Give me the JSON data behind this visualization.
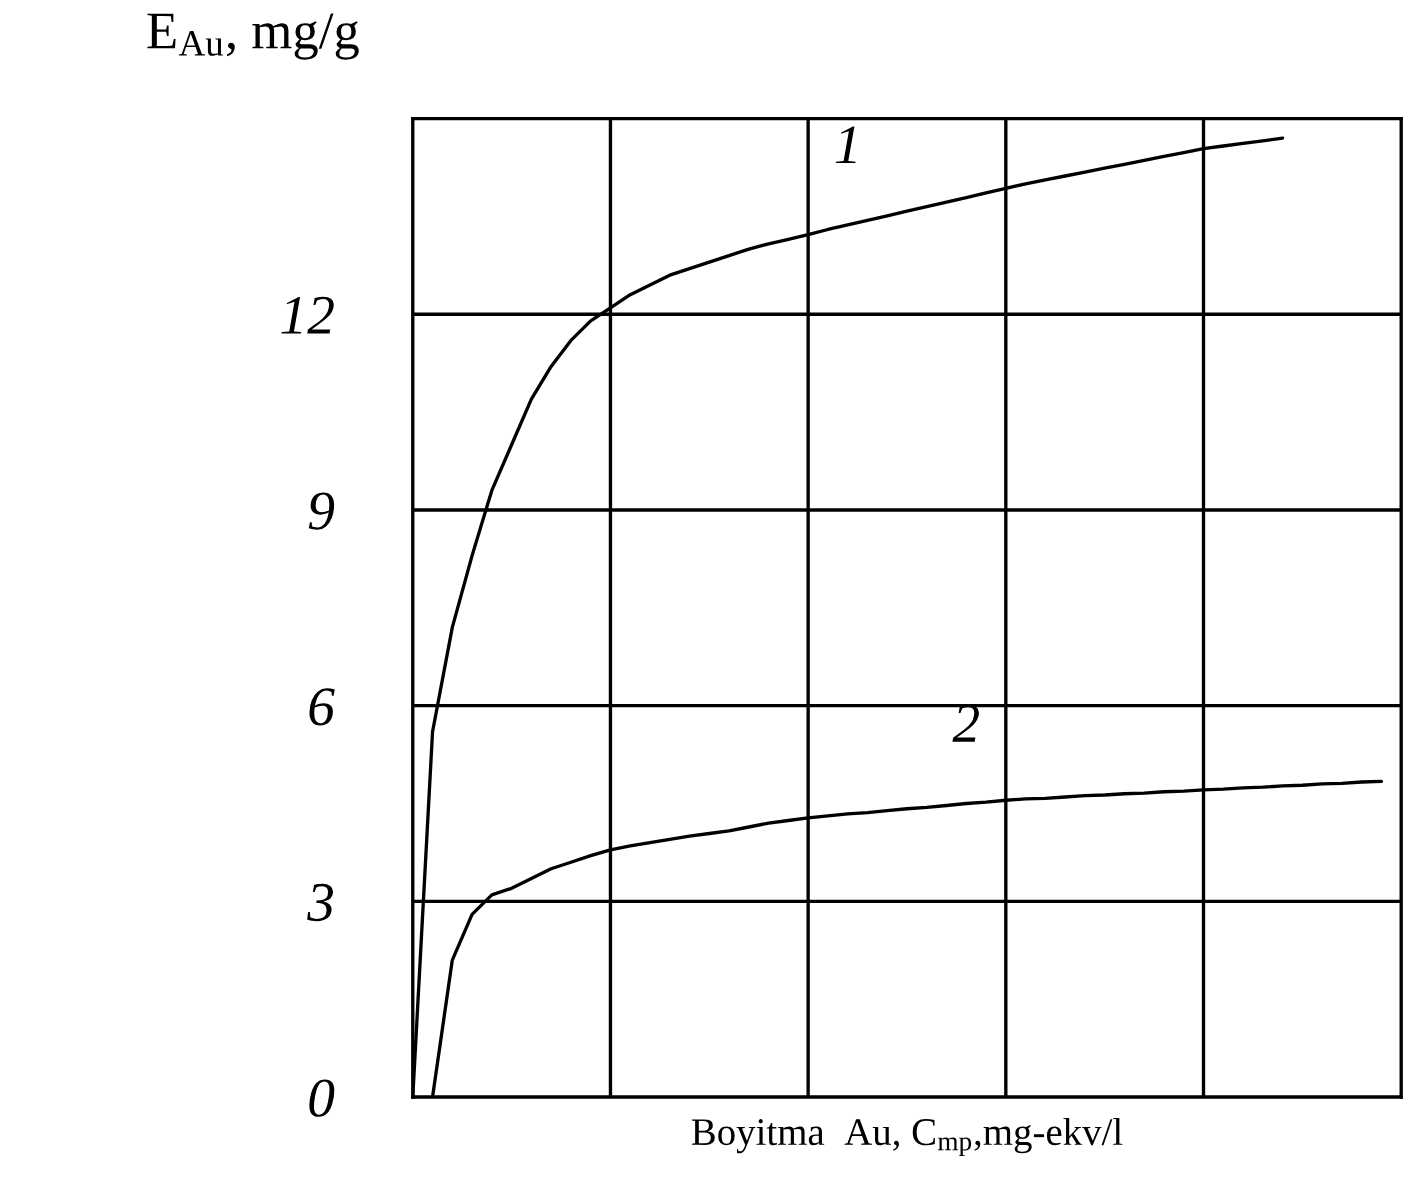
{
  "chart_data": {
    "type": "line",
    "xlabel": "Boyitma  Au, C$_{mp}$,mg-ekv/l",
    "ylabel": "E$_{Au}$, mg/g",
    "categories": [
      null,
      null,
      null,
      null,
      null,
      null,
      null,
      null,
      null,
      null,
      null,
      null,
      null,
      null,
      null,
      null,
      null,
      null,
      null,
      null,
      null,
      null,
      null,
      null,
      null,
      null,
      null,
      null,
      null,
      null,
      null,
      null,
      null,
      null,
      null,
      null,
      null,
      null,
      null,
      null,
      null,
      null,
      null,
      null,
      null,
      null,
      null,
      null,
      null,
      null,
      null
    ],
    "ylim": [
      0,
      15
    ],
    "yticks": [
      0,
      3,
      6,
      9,
      12
    ],
    "grid": true,
    "marker": "none",
    "line_style": "solid",
    "series": [
      {
        "name": "1",
        "color": "#000000",
        "values": [
          0,
          5.6,
          7.2,
          8.3,
          9.3,
          10.0,
          10.7,
          11.2,
          11.6,
          11.9,
          12.1,
          12.3,
          12.45,
          12.6,
          12.7,
          12.8,
          12.9,
          13.0,
          13.08,
          13.15,
          13.22,
          13.3,
          13.37,
          13.44,
          13.51,
          13.58,
          13.65,
          13.72,
          13.79,
          13.86,
          13.93,
          14.0,
          14.06,
          14.12,
          14.18,
          14.24,
          14.3,
          14.36,
          14.42,
          14.48,
          14.54,
          14.58,
          14.62,
          14.66,
          14.7,
          null,
          null,
          null,
          null,
          null,
          null
        ]
      },
      {
        "name": "2",
        "color": "#000000",
        "values": [
          null,
          0,
          2.1,
          2.8,
          3.1,
          3.2,
          3.35,
          3.5,
          3.6,
          3.7,
          3.79,
          3.85,
          3.9,
          3.95,
          4.0,
          4.04,
          4.08,
          4.14,
          4.2,
          4.24,
          4.28,
          4.31,
          4.34,
          4.36,
          4.39,
          4.42,
          4.44,
          4.47,
          4.5,
          4.52,
          4.55,
          4.57,
          4.58,
          4.6,
          4.62,
          4.63,
          4.65,
          4.66,
          4.68,
          4.69,
          4.71,
          4.72,
          4.74,
          4.75,
          4.77,
          4.78,
          4.8,
          4.81,
          4.83,
          4.84,
          null
        ]
      }
    ]
  }
}
